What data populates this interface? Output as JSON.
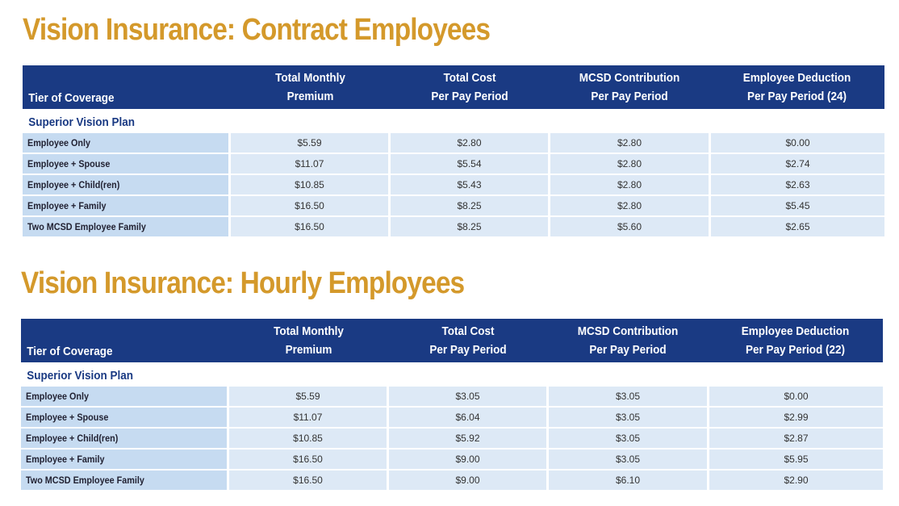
{
  "tables": [
    {
      "title": "Vision Insurance: Contract Employees",
      "headers": {
        "tier": "Tier of Coverage",
        "monthly": [
          "Total Monthly",
          "Premium"
        ],
        "cost": [
          "Total Cost",
          "Per Pay Period"
        ],
        "mcsd": [
          "MCSD Contribution",
          "Per Pay Period"
        ],
        "deduction": [
          "Employee Deduction",
          "Per Pay Period (24)"
        ]
      },
      "plan": "Superior Vision Plan",
      "rows": [
        [
          "Employee Only",
          "$5.59",
          "$2.80",
          "$2.80",
          "$0.00"
        ],
        [
          "Employee + Spouse",
          "$11.07",
          "$5.54",
          "$2.80",
          "$2.74"
        ],
        [
          "Employee + Child(ren)",
          "$10.85",
          "$5.43",
          "$2.80",
          "$2.63"
        ],
        [
          "Employee + Family",
          "$16.50",
          "$8.25",
          "$2.80",
          "$5.45"
        ],
        [
          "Two MCSD Employee Family",
          "$16.50",
          "$8.25",
          "$5.60",
          "$2.65"
        ]
      ]
    },
    {
      "title": "Vision Insurance: Hourly Employees",
      "headers": {
        "tier": "Tier of Coverage",
        "monthly": [
          "Total Monthly",
          "Premium"
        ],
        "cost": [
          "Total Cost",
          "Per Pay Period"
        ],
        "mcsd": [
          "MCSD Contribution",
          "Per Pay Period"
        ],
        "deduction": [
          "Employee Deduction",
          "Per Pay Period (22)"
        ]
      },
      "plan": "Superior Vision Plan",
      "rows": [
        [
          "Employee Only",
          "$5.59",
          "$3.05",
          "$3.05",
          "$0.00"
        ],
        [
          "Employee + Spouse",
          "$11.07",
          "$6.04",
          "$3.05",
          "$2.99"
        ],
        [
          "Employee + Child(ren)",
          "$10.85",
          "$5.92",
          "$3.05",
          "$2.87"
        ],
        [
          "Employee + Family",
          "$16.50",
          "$9.00",
          "$3.05",
          "$5.95"
        ],
        [
          "Two MCSD Employee Family",
          "$16.50",
          "$9.00",
          "$6.10",
          "$2.90"
        ]
      ]
    }
  ]
}
